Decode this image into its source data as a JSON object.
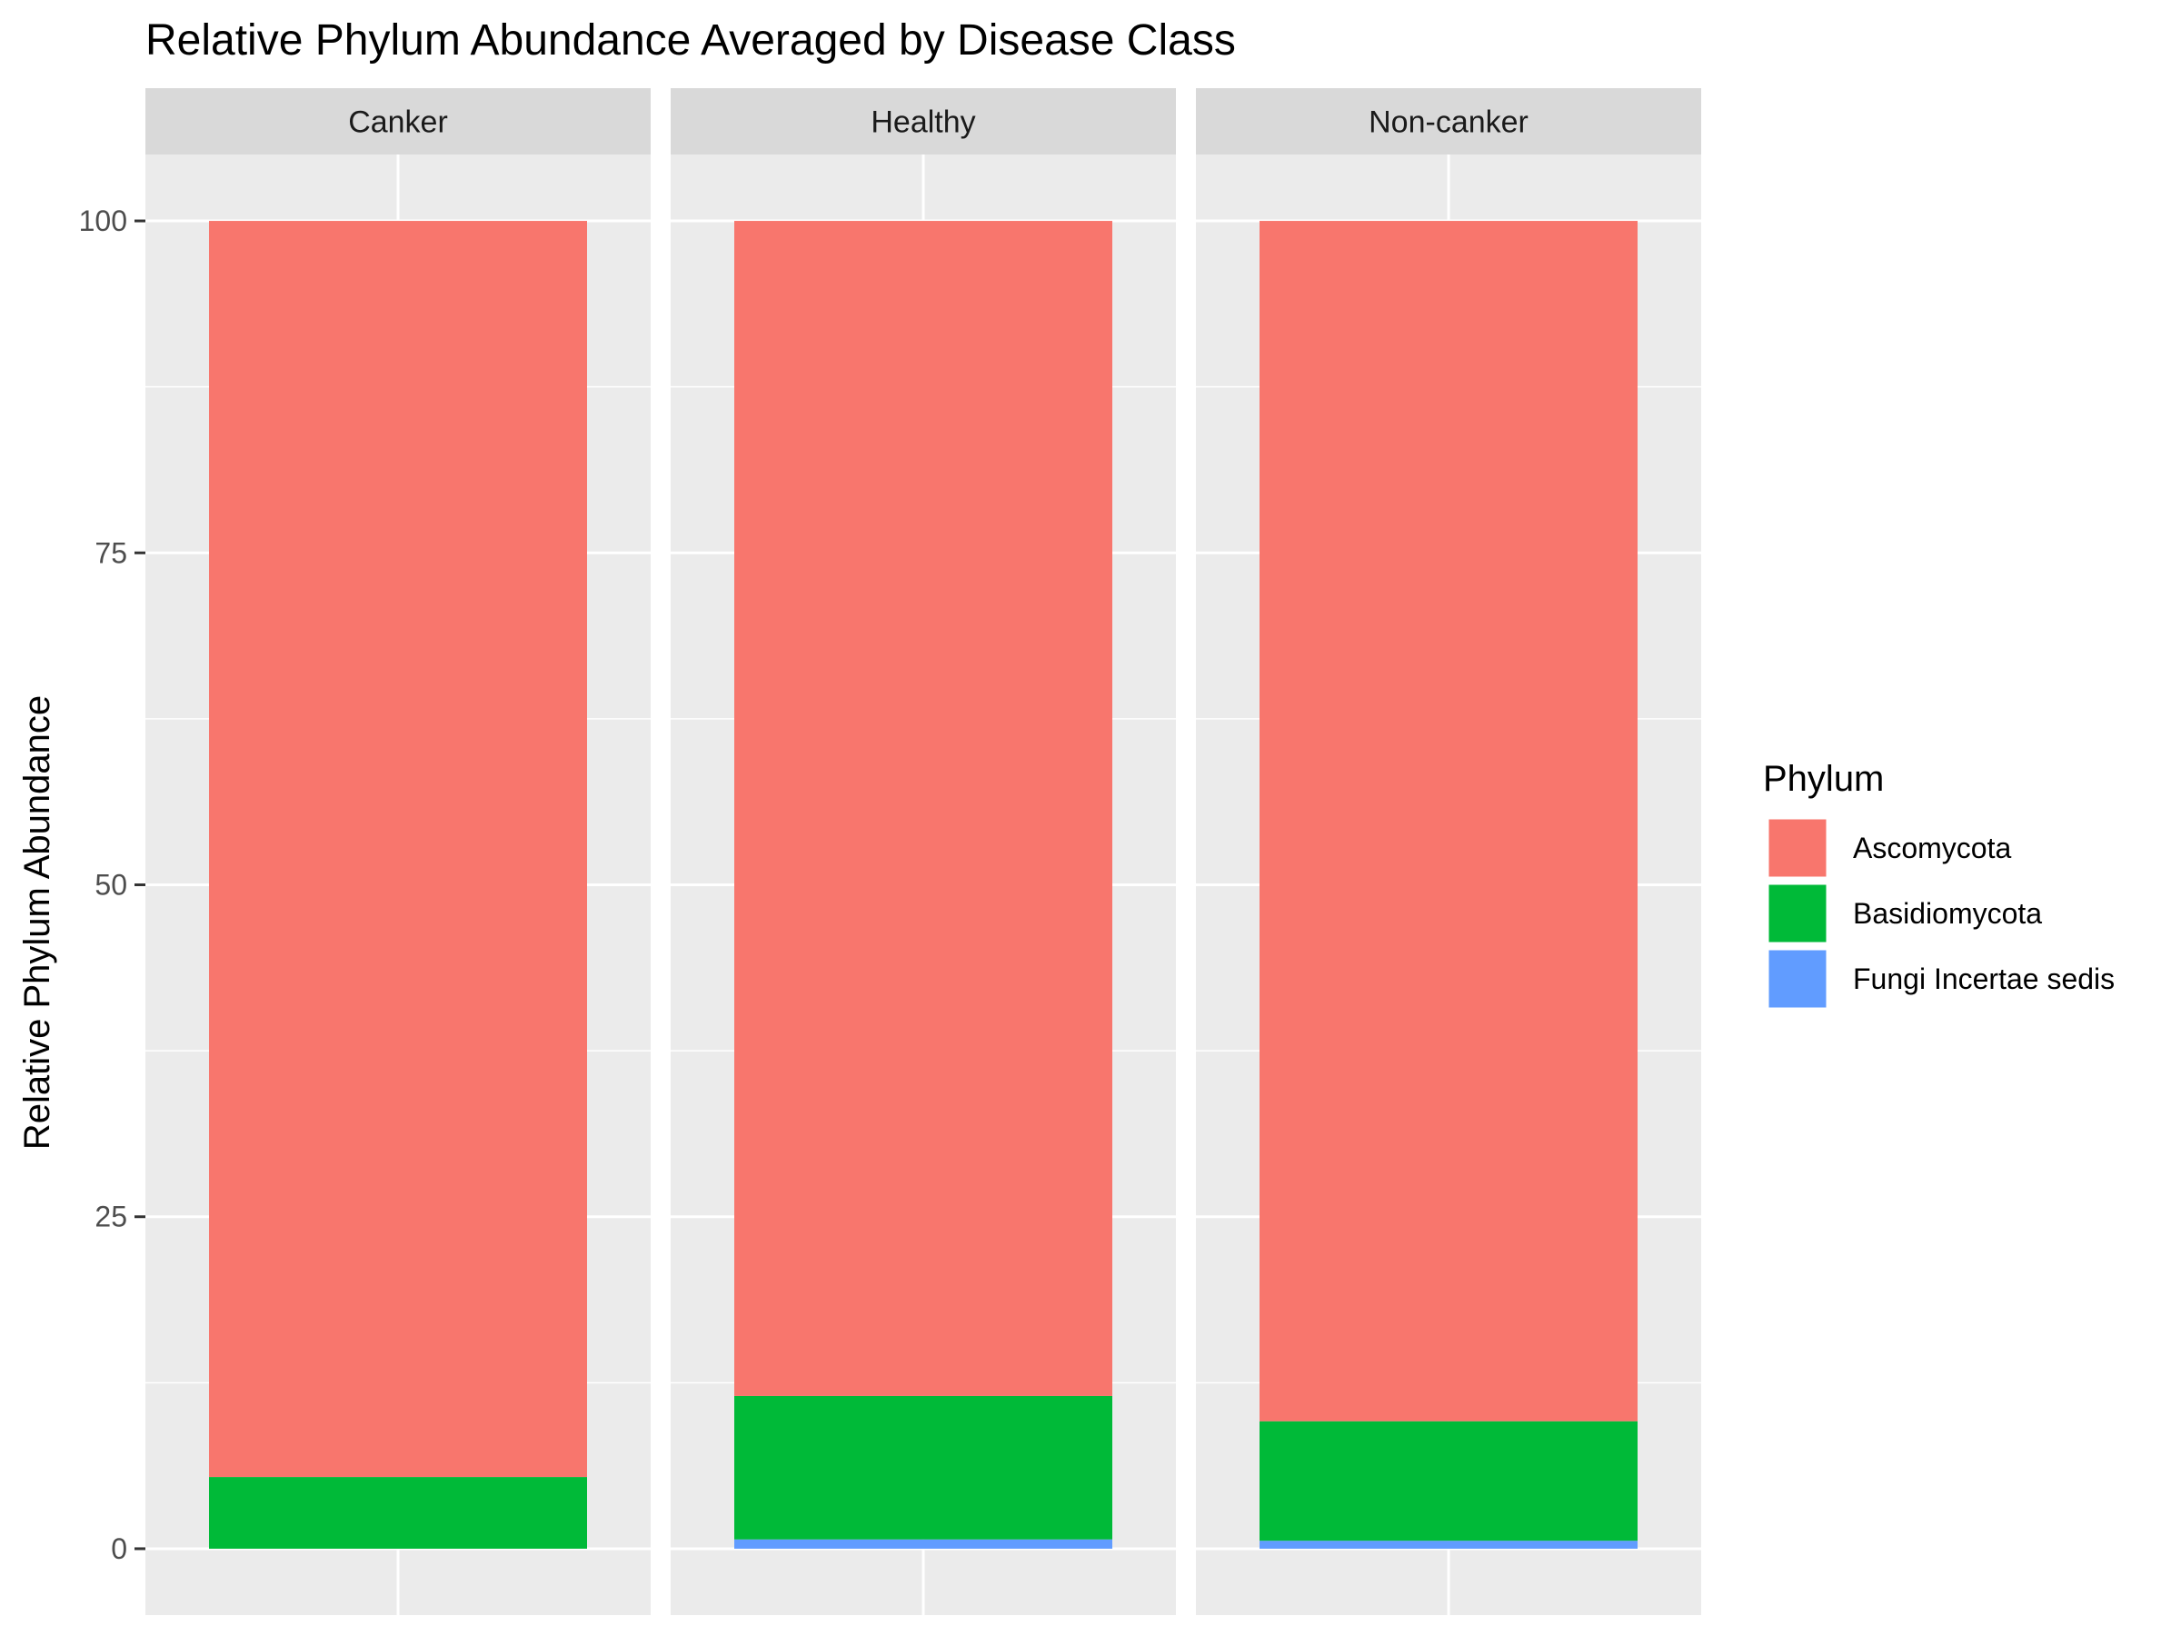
{
  "chart_data": {
    "type": "bar",
    "stacked": true,
    "faceted": true,
    "title": "Relative Phylum Abundance Averaged by Disease Class",
    "xlabel": "",
    "ylabel": "Relative Phylum Abundance",
    "ylim": [
      -5,
      105
    ],
    "yticks": [
      0,
      25,
      50,
      75,
      100
    ],
    "facets": [
      "Canker",
      "Healthy",
      "Non-canker"
    ],
    "legend": {
      "title": "Phylum",
      "position": "right"
    },
    "series": [
      {
        "name": "Fungi Incertae sedis",
        "color": "#619CFF",
        "values": [
          0.0,
          0.7,
          0.6
        ]
      },
      {
        "name": "Basidiomycota",
        "color": "#00BA38",
        "values": [
          5.4,
          10.8,
          9.0
        ]
      },
      {
        "name": "Ascomycota",
        "color": "#F8766D",
        "values": [
          94.6,
          88.5,
          90.4
        ]
      }
    ],
    "legend_order": [
      "Ascomycota",
      "Basidiomycota",
      "Fungi Incertae sedis"
    ]
  },
  "colors": {
    "panel_bg": "#EBEBEB",
    "strip_bg": "#D9D9D9",
    "grid_major": "#FFFFFF"
  }
}
